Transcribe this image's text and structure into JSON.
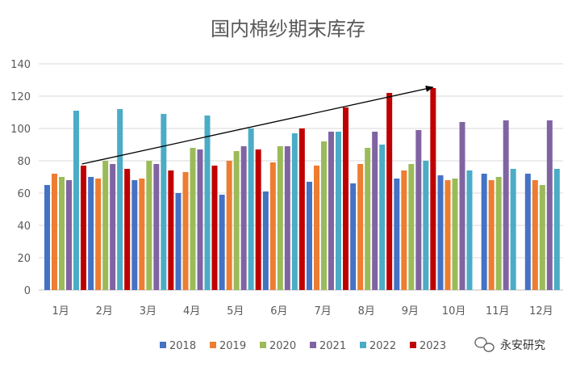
{
  "chart_data": {
    "type": "bar",
    "title": "国内棉纱期末库存",
    "xlabel": "",
    "ylabel": "",
    "ylim": [
      0,
      140
    ],
    "yticks": [
      0,
      20,
      40,
      60,
      80,
      100,
      120,
      140
    ],
    "grid": true,
    "legend_position": "bottom",
    "categories": [
      "1月",
      "2月",
      "3月",
      "4月",
      "5月",
      "6月",
      "7月",
      "8月",
      "9月",
      "10月",
      "11月",
      "12月"
    ],
    "series": [
      {
        "name": "2018",
        "color": "#4472c4",
        "values": [
          65,
          70,
          68,
          60,
          59,
          61,
          67,
          66,
          69,
          71,
          72,
          72
        ]
      },
      {
        "name": "2019",
        "color": "#ed7d31",
        "values": [
          72,
          69,
          69,
          73,
          80,
          79,
          77,
          78,
          74,
          68,
          68,
          68
        ]
      },
      {
        "name": "2020",
        "color": "#9bbb59",
        "values": [
          70,
          80,
          80,
          88,
          86,
          89,
          92,
          88,
          78,
          69,
          70,
          65
        ]
      },
      {
        "name": "2021",
        "color": "#8064a2",
        "values": [
          68,
          78,
          78,
          87,
          89,
          89,
          98,
          98,
          99,
          104,
          105,
          105
        ]
      },
      {
        "name": "2022",
        "color": "#4bacc6",
        "values": [
          111,
          112,
          109,
          108,
          100,
          97,
          98,
          90,
          80,
          74,
          75,
          75
        ]
      },
      {
        "name": "2023",
        "color": "#c00000",
        "values": [
          77,
          75,
          74,
          77,
          87,
          100,
          113,
          122,
          125,
          null,
          null,
          null
        ]
      }
    ],
    "annotations": [
      {
        "type": "arrow",
        "from": {
          "category": "1月",
          "series": "2023",
          "y": 77
        },
        "to": {
          "category": "9月",
          "series": "2023",
          "y": 125
        }
      }
    ]
  },
  "watermark": {
    "text": "永安研究",
    "icon": "wechat-icon"
  }
}
